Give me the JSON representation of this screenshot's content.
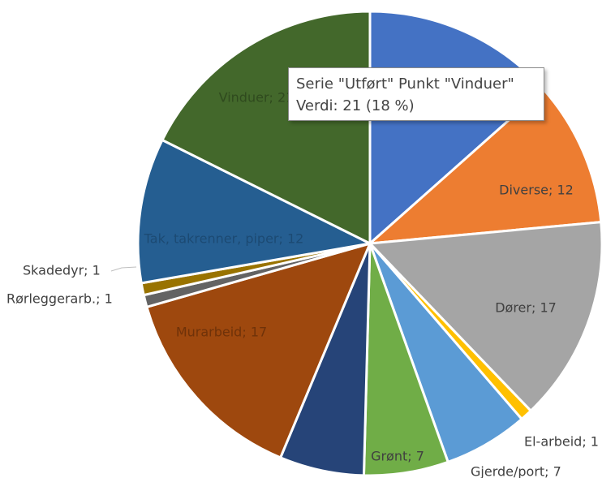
{
  "chart_data": {
    "type": "pie",
    "series_name": "Utført",
    "start_angle_deg": 0,
    "slices": [
      {
        "label": "",
        "value": 16,
        "color": "#4472c4",
        "text_color": "#1f3a73"
      },
      {
        "label": "Diverse",
        "value": 12,
        "color": "#ed7d31",
        "text_color": "#404040"
      },
      {
        "label": "Dører",
        "value": 17,
        "color": "#a5a5a5",
        "text_color": "#404040"
      },
      {
        "label": "El-arbeid",
        "value": 1,
        "color": "#ffc000",
        "text_color": "#404040"
      },
      {
        "label": "Gjerde/port",
        "value": 7,
        "color": "#5b9bd5",
        "text_color": "#404040"
      },
      {
        "label": "Grønt",
        "value": 7,
        "color": "#70ad47",
        "text_color": "#404040"
      },
      {
        "label": "",
        "value": 7,
        "color": "#264478",
        "text_color": "#1b2f55"
      },
      {
        "label": "Murarbeid",
        "value": 17,
        "color": "#9e480e",
        "text_color": "#6f3209"
      },
      {
        "label": "Rørleggerarb.",
        "value": 1,
        "color": "#636363",
        "text_color": "#404040"
      },
      {
        "label": "Skadedyr",
        "value": 1,
        "color": "#997300",
        "text_color": "#404040"
      },
      {
        "label": "Tak, takrenner, piper",
        "value": 12,
        "color": "#255e91",
        "text_color": "#1c4a73"
      },
      {
        "label": "Vinduer",
        "value": 21,
        "color": "#43682b",
        "text_color": "#2f4a1e"
      }
    ]
  },
  "tooltip": {
    "line1": "Serie \"Utført\" Punkt \"Vinduer\"",
    "line2": "Verdi: 21 (18 %)"
  }
}
